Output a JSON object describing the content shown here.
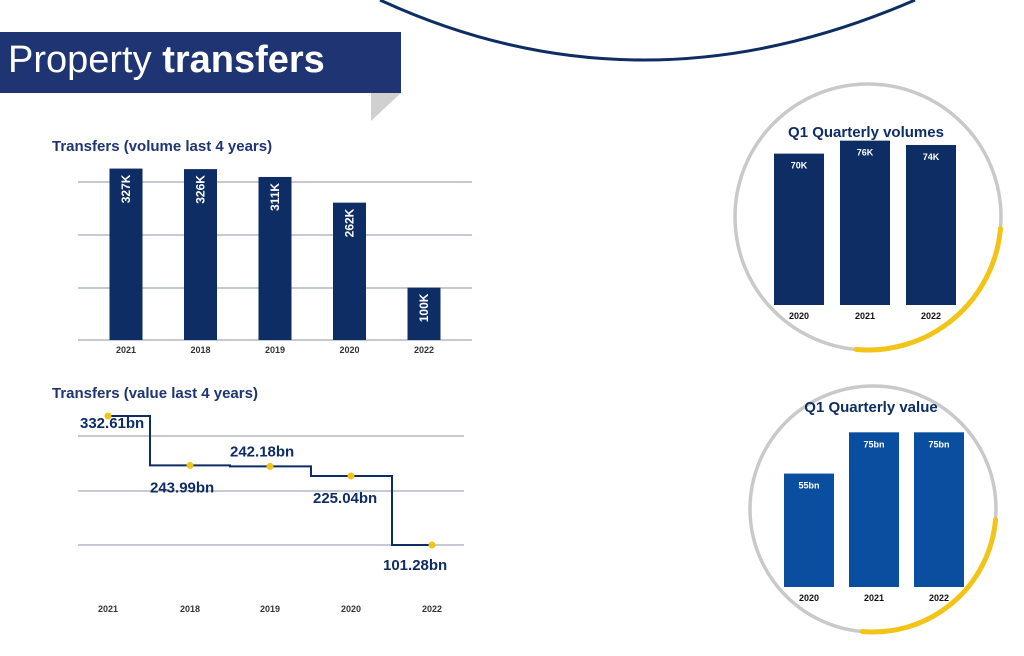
{
  "page": {
    "title_regular": "Property",
    "title_bold": "transfers",
    "colors": {
      "navy": "#0e2d64",
      "blue": "#0a4f9f",
      "gold": "#f2c417",
      "grey_ring": "#c9c9c9",
      "title_band": "#1f3472"
    }
  },
  "chart_data": [
    {
      "id": "volume",
      "type": "bar",
      "title": "Transfers (volume last 4 years)",
      "categories": [
        "2021",
        "2018",
        "2019",
        "2020",
        "2022"
      ],
      "values": [
        327,
        326,
        311,
        262,
        100
      ],
      "labels": [
        "327K",
        "326K",
        "311K",
        "262K",
        "100K"
      ],
      "ylim": [
        0,
        330
      ],
      "grid": true
    },
    {
      "id": "value",
      "type": "line",
      "title": "Transfers (value last 4 years)",
      "categories": [
        "2021",
        "2018",
        "2019",
        "2020",
        "2022"
      ],
      "values": [
        332.61,
        243.99,
        242.18,
        225.04,
        101.28
      ],
      "labels": [
        "332.61bn",
        "243.99bn",
        "242.18bn",
        "225.04bn",
        "101.28bn"
      ],
      "ylim": [
        80,
        340
      ],
      "grid": true
    },
    {
      "id": "q1-volumes",
      "type": "bar",
      "title": "Q1 Quarterly volumes",
      "categories": [
        "2020",
        "2021",
        "2022"
      ],
      "values": [
        70,
        76,
        74
      ],
      "labels": [
        "70K",
        "76K",
        "74K"
      ],
      "ylim": [
        0,
        80
      ]
    },
    {
      "id": "q1-value",
      "type": "bar",
      "title": "Q1 Quarterly value",
      "categories": [
        "2020",
        "2021",
        "2022"
      ],
      "values": [
        55,
        75,
        75
      ],
      "labels": [
        "55bn",
        "75bn",
        "75bn"
      ],
      "ylim": [
        0,
        80
      ]
    }
  ]
}
